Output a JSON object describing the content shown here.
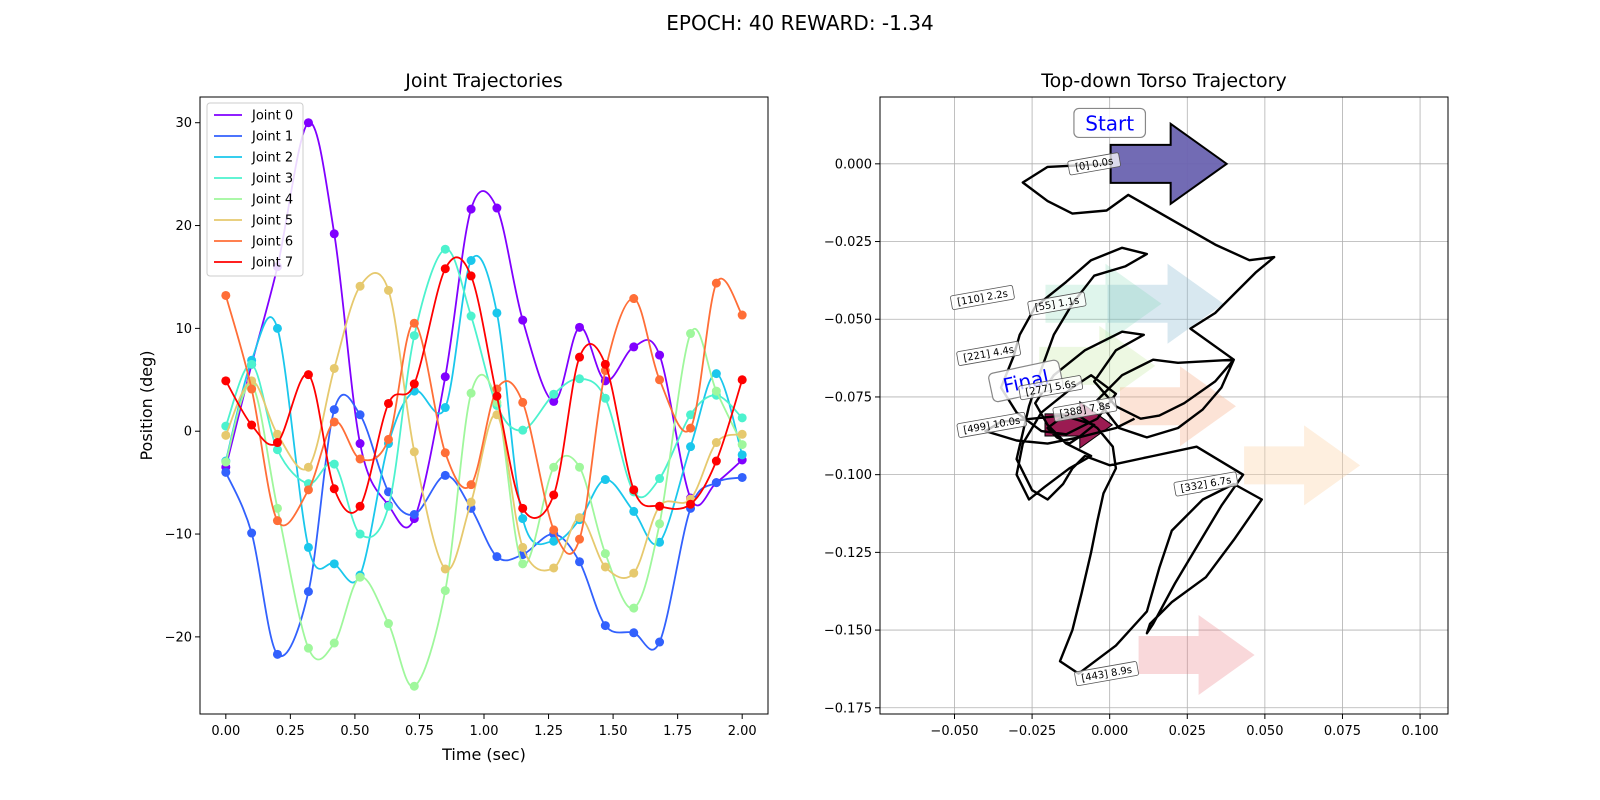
{
  "figure_title": "EPOCH:  40 REWARD:  -1.34",
  "colors": {
    "joints": [
      "#8000ff",
      "#3261fd",
      "#1ac7ec",
      "#4cf2ce",
      "#9ff79c",
      "#e6c96e",
      "#ff6e37",
      "#ff0000"
    ],
    "start_arrow": "#6a63b0",
    "final_arrow": "#9b1b52",
    "path": "#000000",
    "grid": "#b0b0b0"
  },
  "chart_data": [
    {
      "type": "line",
      "title": "Joint Trajectories",
      "xlabel": "Time (sec)",
      "ylabel": "Position (deg)",
      "xlim": [
        -0.1,
        2.1
      ],
      "ylim": [
        -27.5,
        32.5
      ],
      "xticks": [
        "0.00",
        "0.25",
        "0.50",
        "0.75",
        "1.00",
        "1.25",
        "1.50",
        "1.75",
        "2.00"
      ],
      "yticks": [
        "−20",
        "−10",
        "0",
        "10",
        "20",
        "30"
      ],
      "grid": false,
      "legend_position": "upper-left",
      "x": [
        0.0,
        0.1,
        0.2,
        0.32,
        0.42,
        0.52,
        0.63,
        0.73,
        0.85,
        0.95,
        1.05,
        1.15,
        1.27,
        1.37,
        1.47,
        1.58,
        1.68,
        1.8,
        1.9,
        2.0
      ],
      "series": [
        {
          "name": "Joint 0",
          "values": [
            -3.5,
            6.5,
            16.0,
            30.0,
            19.2,
            -1.2,
            -7.2,
            -8.5,
            5.3,
            21.6,
            21.7,
            10.8,
            2.9,
            10.1,
            4.9,
            8.2,
            7.4,
            -6.5,
            -5.0,
            -2.8
          ]
        },
        {
          "name": "Joint 1",
          "values": [
            -4.0,
            -9.9,
            -21.7,
            -15.6,
            2.1,
            1.6,
            -5.9,
            -8.1,
            -4.3,
            -7.5,
            -12.2,
            -12.0,
            -10.0,
            -12.7,
            -18.9,
            -19.6,
            -20.5,
            -7.5,
            -5.0,
            -4.5
          ]
        },
        {
          "name": "Joint 2",
          "values": [
            -2.9,
            6.9,
            10.0,
            -11.3,
            -12.9,
            -14.0,
            -1.2,
            3.9,
            2.3,
            16.6,
            11.5,
            -8.5,
            -10.7,
            -8.6,
            -4.7,
            -7.8,
            -10.8,
            -1.5,
            5.6,
            -2.3
          ]
        },
        {
          "name": "Joint 3",
          "values": [
            0.5,
            6.5,
            -1.8,
            -5.1,
            -3.2,
            -10.0,
            -7.3,
            9.3,
            17.7,
            11.2,
            2.5,
            0.1,
            3.6,
            5.1,
            3.2,
            -5.9,
            -4.6,
            1.6,
            3.5,
            1.3
          ]
        },
        {
          "name": "Joint 4",
          "values": [
            -3.0,
            4.5,
            -7.5,
            -21.1,
            -20.6,
            -14.2,
            -18.7,
            -24.8,
            -15.5,
            3.7,
            2.8,
            -12.9,
            -3.5,
            -3.5,
            -11.9,
            -17.2,
            -9.0,
            9.5,
            3.9,
            -1.3
          ]
        },
        {
          "name": "Joint 5",
          "values": [
            -0.4,
            4.9,
            -0.3,
            -3.5,
            6.1,
            14.1,
            13.7,
            -2.0,
            -13.4,
            -6.9,
            1.6,
            -11.3,
            -13.3,
            -8.4,
            -13.2,
            -13.8,
            -7.3,
            -6.6,
            -1.1,
            -0.3
          ]
        },
        {
          "name": "Joint 6",
          "values": [
            13.2,
            4.1,
            -8.7,
            -5.7,
            0.9,
            -2.7,
            -0.8,
            10.5,
            -2.1,
            -5.2,
            4.1,
            2.8,
            -9.6,
            -10.5,
            5.9,
            12.9,
            5.0,
            0.3,
            14.4,
            11.3
          ]
        },
        {
          "name": "Joint 7",
          "values": [
            4.9,
            0.6,
            -1.1,
            5.5,
            -5.6,
            -7.3,
            2.7,
            4.6,
            15.8,
            15.1,
            3.4,
            -7.5,
            -6.2,
            7.2,
            6.5,
            -5.7,
            -7.3,
            -7.1,
            -2.9,
            5.0
          ]
        }
      ]
    },
    {
      "type": "line",
      "title": "Top-down Torso Trajectory",
      "xlabel": "",
      "ylabel": "",
      "xlim": [
        -0.074,
        0.109
      ],
      "ylim": [
        -0.177,
        0.0215
      ],
      "xticks": [
        "−0.050",
        "−0.025",
        "0.000",
        "0.025",
        "0.050",
        "0.075",
        "0.100"
      ],
      "yticks": [
        "0.000",
        "−0.025",
        "−0.050",
        "−0.075",
        "−0.100",
        "−0.125",
        "−0.150",
        "−0.175"
      ],
      "grid": true,
      "path": {
        "x": [
          0.0,
          -0.02,
          -0.028,
          -0.02,
          -0.012,
          -0.001,
          0.006,
          0.02,
          0.034,
          0.045,
          0.053,
          0.047,
          0.04,
          0.034,
          0.026,
          0.04,
          0.036,
          0.03,
          0.022,
          0.012,
          0.003,
          -0.004,
          0.004,
          0.014,
          0.022,
          0.04,
          0.034,
          0.024,
          0.016,
          0.01,
          0.002,
          -0.005,
          0.002,
          0.011,
          0.004,
          -0.008,
          -0.018,
          -0.024,
          -0.02,
          -0.014,
          -0.006,
          -0.013,
          -0.021,
          -0.026,
          -0.03,
          -0.028,
          -0.022,
          -0.012,
          -0.006,
          0.002,
          -0.004,
          -0.014,
          -0.022,
          -0.03,
          -0.035,
          -0.031,
          -0.029,
          -0.024,
          -0.014,
          -0.006,
          0.004,
          0.012,
          0.005,
          -0.005,
          -0.012,
          -0.018,
          -0.022,
          -0.026,
          -0.03,
          -0.025,
          -0.02,
          -0.015,
          -0.012,
          -0.008,
          0.0,
          0.014,
          0.028,
          0.043,
          0.036,
          0.03,
          0.021,
          0.014,
          0.012,
          0.013,
          0.02,
          0.031,
          0.04,
          0.049,
          0.04,
          0.03,
          0.02,
          0.016,
          0.012,
          0.002,
          -0.01,
          -0.016,
          -0.012,
          -0.009,
          -0.006,
          -0.004,
          -0.002,
          0.002,
          0.001,
          -0.004,
          -0.01,
          -0.016,
          -0.02,
          -0.017,
          -0.013,
          -0.01,
          -0.005,
          -0.015,
          -0.025,
          -0.035,
          -0.04,
          -0.03,
          -0.02,
          -0.01,
          0.002,
          0.008
        ],
        "y": [
          0.0,
          -0.001,
          -0.006,
          -0.012,
          -0.016,
          -0.015,
          -0.01,
          -0.018,
          -0.026,
          -0.031,
          -0.03,
          -0.035,
          -0.042,
          -0.048,
          -0.053,
          -0.063,
          -0.072,
          -0.079,
          -0.085,
          -0.088,
          -0.085,
          -0.076,
          -0.068,
          -0.063,
          -0.064,
          -0.063,
          -0.07,
          -0.077,
          -0.081,
          -0.082,
          -0.078,
          -0.07,
          -0.06,
          -0.055,
          -0.054,
          -0.06,
          -0.068,
          -0.077,
          -0.084,
          -0.09,
          -0.094,
          -0.098,
          -0.104,
          -0.108,
          -0.1,
          -0.09,
          -0.08,
          -0.072,
          -0.068,
          -0.074,
          -0.082,
          -0.087,
          -0.086,
          -0.08,
          -0.072,
          -0.062,
          -0.055,
          -0.046,
          -0.038,
          -0.031,
          -0.027,
          -0.029,
          -0.033,
          -0.036,
          -0.045,
          -0.055,
          -0.066,
          -0.078,
          -0.095,
          -0.105,
          -0.108,
          -0.103,
          -0.098,
          -0.094,
          -0.097,
          -0.094,
          -0.091,
          -0.1,
          -0.11,
          -0.12,
          -0.135,
          -0.148,
          -0.151,
          -0.148,
          -0.141,
          -0.133,
          -0.121,
          -0.108,
          -0.103,
          -0.108,
          -0.118,
          -0.13,
          -0.144,
          -0.155,
          -0.164,
          -0.16,
          -0.15,
          -0.138,
          -0.125,
          -0.115,
          -0.106,
          -0.098,
          -0.091,
          -0.085,
          -0.081,
          -0.082,
          -0.085,
          -0.088,
          -0.09,
          -0.088,
          -0.084,
          -0.081,
          -0.082,
          -0.083,
          -0.086,
          -0.089,
          -0.09,
          -0.088,
          -0.085,
          -0.082
        ]
      },
      "arrows": [
        {
          "x": 0.018,
          "y": -0.045,
          "color": "#8fbcd4",
          "opacity": 0.35
        },
        {
          "x": -0.002,
          "y": -0.045,
          "color": "#6fd3a8",
          "opacity": 0.22
        },
        {
          "x": -0.004,
          "y": -0.065,
          "color": "#c4e8a0",
          "opacity": 0.3
        },
        {
          "x": 0.022,
          "y": -0.078,
          "color": "#f7b08a",
          "opacity": 0.35
        },
        {
          "x": 0.062,
          "y": -0.097,
          "color": "#fcd7b0",
          "opacity": 0.4
        },
        {
          "x": 0.028,
          "y": -0.158,
          "color": "#ea7d85",
          "opacity": 0.3
        },
        {
          "x": -0.01,
          "y": -0.084,
          "color": "#9b1b52",
          "opacity": 1.0
        },
        {
          "x": 0.019,
          "y": 0.0,
          "color": "#6a63b0",
          "opacity": 1.0
        }
      ],
      "labels": [
        {
          "text": "Start",
          "x": 0.0,
          "y": 0.013,
          "kind": "big"
        },
        {
          "text": "Final",
          "x": -0.027,
          "y": -0.07,
          "kind": "big"
        },
        {
          "text": "[0] 0.0s",
          "x": -0.005,
          "y": 0.0,
          "kind": "small"
        },
        {
          "text": "[110] 2.2s",
          "x": -0.041,
          "y": -0.043,
          "kind": "small"
        },
        {
          "text": "[55] 1.1s",
          "x": -0.017,
          "y": -0.045,
          "kind": "small"
        },
        {
          "text": "[221] 4.4s",
          "x": -0.039,
          "y": -0.061,
          "kind": "small"
        },
        {
          "text": "[277] 5.6s",
          "x": -0.019,
          "y": -0.072,
          "kind": "small"
        },
        {
          "text": "[388] 7.8s",
          "x": -0.008,
          "y": -0.079,
          "kind": "small"
        },
        {
          "text": "[499] 10.0s",
          "x": -0.038,
          "y": -0.084,
          "kind": "small"
        },
        {
          "text": "[332] 6.7s",
          "x": 0.031,
          "y": -0.103,
          "kind": "small"
        },
        {
          "text": "[443] 8.9s",
          "x": -0.001,
          "y": -0.164,
          "kind": "small"
        }
      ]
    }
  ]
}
